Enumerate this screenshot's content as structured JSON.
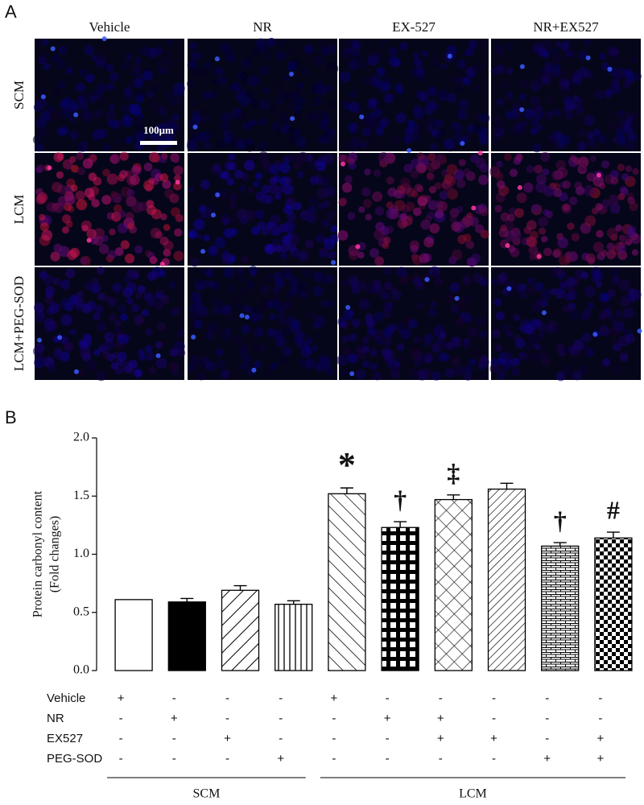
{
  "figure": {
    "panel_a": {
      "label": "A",
      "columns": [
        "Vehicle",
        "NR",
        "EX-527",
        "NR+EX527"
      ],
      "rows": [
        "SCM",
        "LCM",
        "LCM+PEG-SOD"
      ],
      "scale_bar": "100μm"
    }
  },
  "chart_data": {
    "type": "bar",
    "label": "B",
    "ylabel": [
      "Protein carbonyl content",
      "(Fold changes)"
    ],
    "categories": [
      null,
      null,
      null,
      null,
      null,
      null,
      null,
      null,
      null,
      null
    ],
    "values": [
      0.61,
      0.59,
      0.69,
      0.57,
      1.52,
      1.23,
      1.47,
      1.56,
      1.07,
      1.14
    ],
    "errors": [
      null,
      0.03,
      0.04,
      0.03,
      0.05,
      0.05,
      0.04,
      0.05,
      0.03,
      0.05
    ],
    "patterns": [
      "none",
      "solid",
      "forward-diagonal",
      "vertical",
      "backward-diagonal",
      "plaid",
      "crosshatch",
      "dense-diagonal",
      "brick",
      "checker"
    ],
    "annotations": [
      null,
      null,
      null,
      null,
      "*",
      "†",
      "‡",
      null,
      "†",
      "#"
    ],
    "color": "#000000",
    "ylim": [
      0,
      2
    ],
    "yticks": [
      {
        "value": 0,
        "label": "0.0"
      },
      {
        "value": 0.5,
        "label": "0.5"
      },
      {
        "value": 1,
        "label": "1.0"
      },
      {
        "value": 1.5,
        "label": "1.5"
      },
      {
        "value": 2,
        "label": "2.0"
      }
    ],
    "treatments": [
      {
        "name": "Vehicle",
        "marks": [
          "+",
          "-",
          "-",
          "-",
          "+",
          "-",
          "-",
          "-",
          "-",
          "-"
        ]
      },
      {
        "name": "NR",
        "marks": [
          "-",
          "+",
          "-",
          "-",
          "-",
          "+",
          "+",
          "-",
          "-",
          "-"
        ]
      },
      {
        "name": "EX527",
        "marks": [
          "-",
          "-",
          "+",
          "-",
          "-",
          "-",
          "+",
          "+",
          "-",
          "+"
        ]
      },
      {
        "name": "PEG-SOD",
        "marks": [
          "-",
          "-",
          "-",
          "+",
          "-",
          "-",
          "-",
          "-",
          "+",
          "+"
        ]
      }
    ],
    "groups": [
      {
        "label": "SCM",
        "count": 4
      },
      {
        "label": "LCM",
        "count": 6
      }
    ]
  }
}
